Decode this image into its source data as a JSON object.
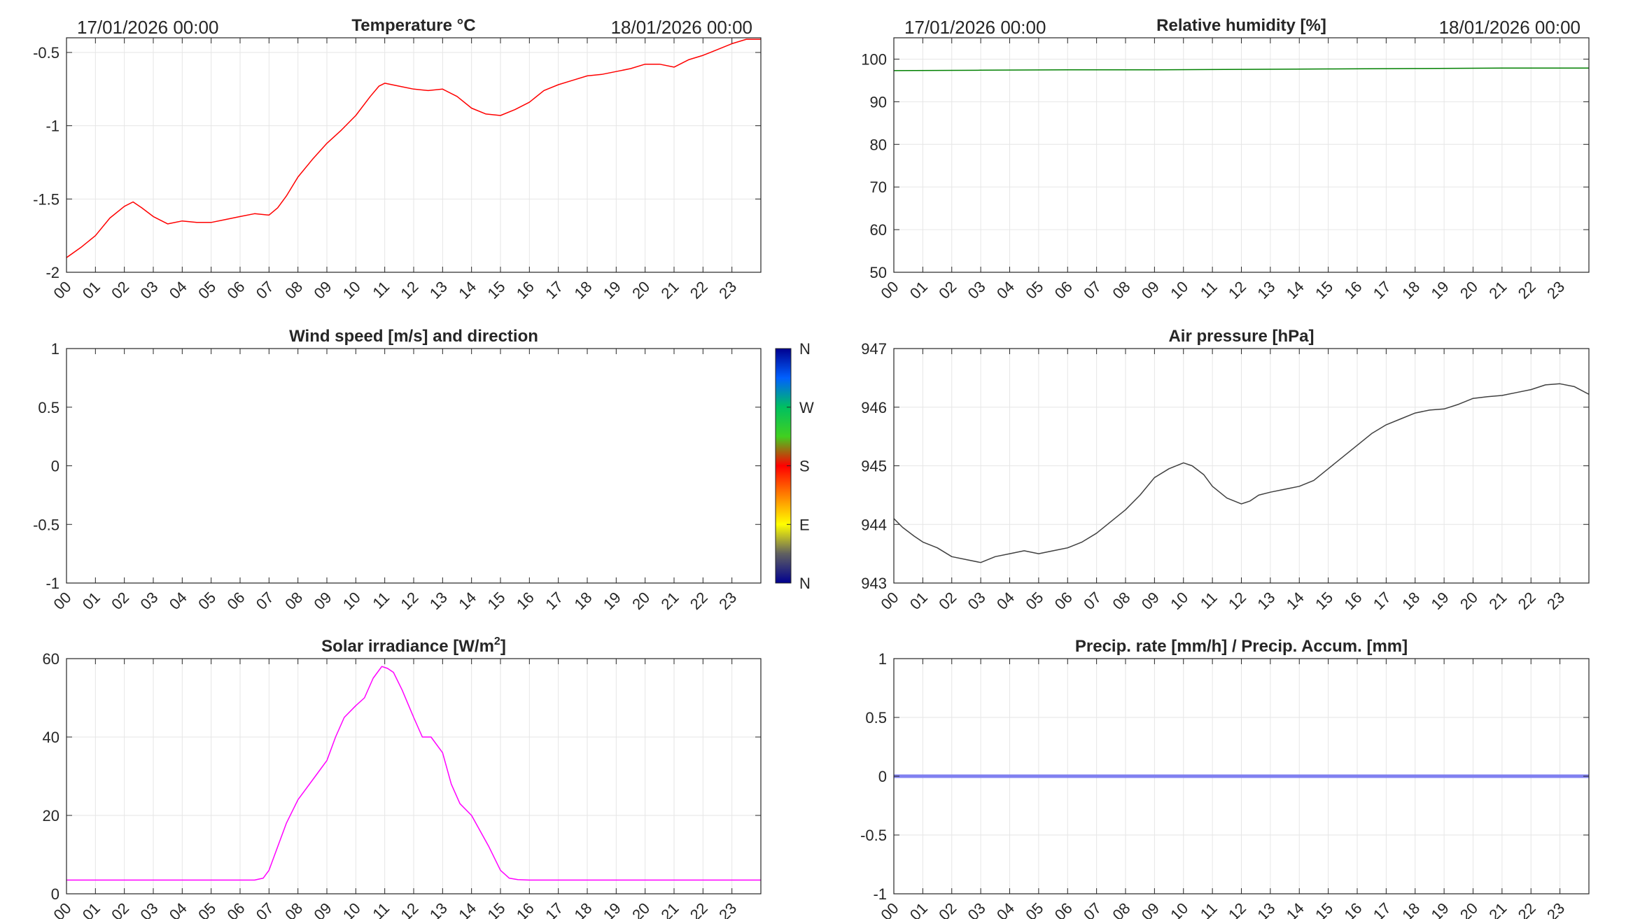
{
  "chart_data": [
    {
      "id": "temperature",
      "type": "line",
      "title": "Temperature °C",
      "date_start": "17/01/2026 00:00",
      "date_end": "18/01/2026 00:00",
      "xlabel": "",
      "ylabel": "",
      "x_ticks": [
        "00",
        "01",
        "02",
        "03",
        "04",
        "05",
        "06",
        "07",
        "08",
        "09",
        "10",
        "11",
        "12",
        "13",
        "14",
        "15",
        "16",
        "17",
        "18",
        "19",
        "20",
        "21",
        "22",
        "23"
      ],
      "xlim": [
        0,
        24
      ],
      "ylim": [
        -2,
        -0.4
      ],
      "y_ticks": [
        -2,
        -1.5,
        -1,
        -0.5
      ],
      "y_tick_labels": [
        "-2",
        "-1.5",
        "-1",
        "-0.5"
      ],
      "grid": true,
      "color": "#ff0000",
      "series": [
        {
          "x": [
            0,
            0.5,
            1,
            1.5,
            2,
            2.3,
            2.6,
            3,
            3.5,
            4,
            4.5,
            5,
            5.5,
            6,
            6.5,
            7,
            7.3,
            7.6,
            8,
            8.5,
            9,
            9.5,
            10,
            10.5,
            10.8,
            11,
            11.5,
            12,
            12.5,
            13,
            13.5,
            14,
            14.5,
            15,
            15.5,
            16,
            16.5,
            17,
            17.5,
            18,
            18.5,
            19,
            19.5,
            20,
            20.5,
            21,
            21.5,
            22,
            22.5,
            23,
            23.5,
            24
          ],
          "y": [
            -1.9,
            -1.83,
            -1.75,
            -1.63,
            -1.55,
            -1.52,
            -1.56,
            -1.62,
            -1.67,
            -1.65,
            -1.66,
            -1.66,
            -1.64,
            -1.62,
            -1.6,
            -1.61,
            -1.56,
            -1.48,
            -1.35,
            -1.23,
            -1.12,
            -1.03,
            -0.93,
            -0.8,
            -0.73,
            -0.71,
            -0.73,
            -0.75,
            -0.76,
            -0.75,
            -0.8,
            -0.88,
            -0.92,
            -0.93,
            -0.89,
            -0.84,
            -0.76,
            -0.72,
            -0.69,
            -0.66,
            -0.65,
            -0.63,
            -0.61,
            -0.58,
            -0.58,
            -0.6,
            -0.55,
            -0.52,
            -0.48,
            -0.44,
            -0.41,
            -0.41
          ]
        }
      ]
    },
    {
      "id": "humidity",
      "type": "line",
      "title": "Relative humidity [%]",
      "date_start": "17/01/2026 00:00",
      "date_end": "18/01/2026 00:00",
      "xlabel": "",
      "ylabel": "",
      "x_ticks": [
        "00",
        "01",
        "02",
        "03",
        "04",
        "05",
        "06",
        "07",
        "08",
        "09",
        "10",
        "11",
        "12",
        "13",
        "14",
        "15",
        "16",
        "17",
        "18",
        "19",
        "20",
        "21",
        "22",
        "23"
      ],
      "xlim": [
        0,
        24
      ],
      "ylim": [
        50,
        105
      ],
      "y_ticks": [
        50,
        60,
        70,
        80,
        90,
        100
      ],
      "y_tick_labels": [
        "50",
        "60",
        "70",
        "80",
        "90",
        "100"
      ],
      "grid": true,
      "color": "#008000",
      "series": [
        {
          "x": [
            0,
            3,
            6,
            9,
            12,
            15,
            18,
            21,
            24
          ],
          "y": [
            97.3,
            97.4,
            97.5,
            97.5,
            97.6,
            97.7,
            97.8,
            97.9,
            97.9
          ]
        }
      ]
    },
    {
      "id": "wind",
      "type": "scatter",
      "title": "Wind speed [m/s] and direction",
      "xlabel": "",
      "ylabel": "",
      "x_ticks": [
        "00",
        "01",
        "02",
        "03",
        "04",
        "05",
        "06",
        "07",
        "08",
        "09",
        "10",
        "11",
        "12",
        "13",
        "14",
        "15",
        "16",
        "17",
        "18",
        "19",
        "20",
        "21",
        "22",
        "23"
      ],
      "xlim": [
        0,
        24
      ],
      "ylim": [
        -1,
        1
      ],
      "y_ticks": [
        -1,
        -0.5,
        0,
        0.5,
        1
      ],
      "y_tick_labels": [
        "-1",
        "-0.5",
        "0",
        "0.5",
        "1"
      ],
      "grid": false,
      "colorbar_labels": [
        "N",
        "W",
        "S",
        "E",
        "N"
      ],
      "colorbar_colors": [
        "#00008f",
        "#0060ff",
        "#00c060",
        "#40d020",
        "#ff0000",
        "#ff8000",
        "#ffff00",
        "#606060",
        "#00008f"
      ],
      "series": []
    },
    {
      "id": "pressure",
      "type": "line",
      "title": "Air pressure [hPa]",
      "xlabel": "",
      "ylabel": "",
      "x_ticks": [
        "00",
        "01",
        "02",
        "03",
        "04",
        "05",
        "06",
        "07",
        "08",
        "09",
        "10",
        "11",
        "12",
        "13",
        "14",
        "15",
        "16",
        "17",
        "18",
        "19",
        "20",
        "21",
        "22",
        "23"
      ],
      "xlim": [
        0,
        24
      ],
      "ylim": [
        943,
        947
      ],
      "y_ticks": [
        943,
        944,
        945,
        946,
        947
      ],
      "y_tick_labels": [
        "943",
        "944",
        "945",
        "946",
        "947"
      ],
      "grid": true,
      "color": "#404040",
      "series": [
        {
          "x": [
            0,
            0.3,
            0.7,
            1,
            1.5,
            2,
            2.5,
            3,
            3.5,
            4,
            4.5,
            5,
            5.5,
            6,
            6.5,
            7,
            7.5,
            8,
            8.5,
            9,
            9.5,
            10,
            10.3,
            10.7,
            11,
            11.5,
            12,
            12.3,
            12.6,
            13,
            13.5,
            14,
            14.5,
            15,
            15.5,
            16,
            16.5,
            17,
            17.5,
            18,
            18.5,
            19,
            19.5,
            20,
            20.5,
            21,
            21.5,
            22,
            22.5,
            23,
            23.5,
            24
          ],
          "y": [
            944.1,
            943.95,
            943.8,
            943.7,
            943.6,
            943.45,
            943.4,
            943.35,
            943.45,
            943.5,
            943.55,
            943.5,
            943.55,
            943.6,
            943.7,
            943.85,
            944.05,
            944.25,
            944.5,
            944.8,
            944.95,
            945.05,
            945.0,
            944.85,
            944.65,
            944.45,
            944.35,
            944.4,
            944.5,
            944.55,
            944.6,
            944.65,
            944.75,
            944.95,
            945.15,
            945.35,
            945.55,
            945.7,
            945.8,
            945.9,
            945.95,
            945.97,
            946.05,
            946.15,
            946.18,
            946.2,
            946.25,
            946.3,
            946.38,
            946.4,
            946.35,
            946.22
          ]
        }
      ]
    },
    {
      "id": "solar",
      "type": "line",
      "title": "Solar irradiance [W/m",
      "title_sup": "2",
      "title_end": "]",
      "xlabel": "",
      "ylabel": "",
      "x_ticks": [
        "00",
        "01",
        "02",
        "03",
        "04",
        "05",
        "06",
        "07",
        "08",
        "09",
        "10",
        "11",
        "12",
        "13",
        "14",
        "15",
        "16",
        "17",
        "18",
        "19",
        "20",
        "21",
        "22",
        "23"
      ],
      "xlim": [
        0,
        24
      ],
      "ylim": [
        0,
        60
      ],
      "y_ticks": [
        0,
        20,
        40,
        60
      ],
      "y_tick_labels": [
        "0",
        "20",
        "40",
        "60"
      ],
      "grid": true,
      "color": "#ff00ff",
      "series": [
        {
          "x": [
            0,
            6.5,
            6.8,
            7.0,
            7.3,
            7.6,
            8.0,
            8.3,
            8.6,
            9.0,
            9.3,
            9.6,
            10.0,
            10.3,
            10.6,
            10.9,
            11.1,
            11.3,
            11.6,
            12.0,
            12.3,
            12.6,
            13.0,
            13.3,
            13.6,
            14.0,
            14.3,
            14.6,
            15.0,
            15.3,
            15.6,
            16.0,
            20.0,
            24.0
          ],
          "y": [
            3.5,
            3.5,
            4.0,
            6.0,
            12.0,
            18.0,
            24.0,
            27.0,
            30.0,
            34.0,
            40.0,
            45.0,
            48.0,
            50.0,
            55.0,
            58.0,
            57.5,
            56.5,
            52.0,
            45.0,
            40.0,
            40.0,
            36.0,
            28.0,
            23.0,
            20.0,
            16.0,
            12.0,
            6.0,
            4.0,
            3.6,
            3.5,
            3.5,
            3.5
          ]
        }
      ]
    },
    {
      "id": "precip",
      "type": "line",
      "title": "Precip. rate [mm/h] / Precip. Accum. [mm]",
      "xlabel": "",
      "ylabel": "",
      "x_ticks": [
        "00",
        "01",
        "02",
        "03",
        "04",
        "05",
        "06",
        "07",
        "08",
        "09",
        "10",
        "11",
        "12",
        "13",
        "14",
        "15",
        "16",
        "17",
        "18",
        "19",
        "20",
        "21",
        "22",
        "23"
      ],
      "xlim": [
        0,
        24
      ],
      "ylim": [
        -1,
        1
      ],
      "y_ticks": [
        -1,
        -0.5,
        0,
        0.5,
        1
      ],
      "y_tick_labels": [
        "-1",
        "-0.5",
        "0",
        "0.5",
        "1"
      ],
      "grid": true,
      "color": "#8080f0",
      "series": [
        {
          "x": [
            0,
            24
          ],
          "y": [
            0,
            0
          ]
        }
      ]
    }
  ]
}
